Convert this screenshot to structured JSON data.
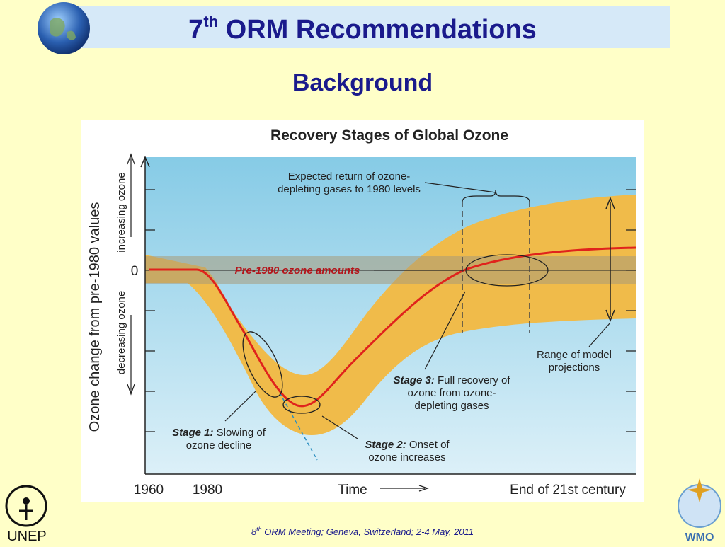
{
  "header": {
    "title": {
      "base": "7",
      "sup": "th",
      "rest": " ORM Recommendations"
    },
    "subtitle": "Background"
  },
  "figure": {
    "title": "Recovery Stages of Global Ozone",
    "y_axis_label": "Ozone change from pre-1980 values",
    "y_increasing": "increasing ozone",
    "y_decreasing": "decreasing ozone",
    "y_zero": "0",
    "x_labels": [
      "1960",
      "1980",
      "Time",
      "End of 21st century"
    ],
    "baseline_label": "Pre-1980 ozone amounts",
    "return_note": [
      "Expected return of ozone-",
      "depleting gases to 1980 levels"
    ],
    "range_note": [
      "Range of model",
      "projections"
    ],
    "stages": [
      {
        "label": "Stage 1:",
        "lines": [
          " Slowing of",
          "ozone decline"
        ]
      },
      {
        "label": "Stage 2:",
        "lines": [
          " Onset of",
          "ozone increases"
        ]
      },
      {
        "label": "Stage 3:",
        "lines": [
          " Full recovery of",
          "ozone from ozone-",
          "depleting gases"
        ]
      }
    ]
  },
  "logos": {
    "left": "UNEP",
    "right": "WMO"
  },
  "footer": {
    "base": "8",
    "sup": "th",
    "rest": " ORM Meeting; Geneva, Switzerland; 2-4 May, 2011"
  }
}
